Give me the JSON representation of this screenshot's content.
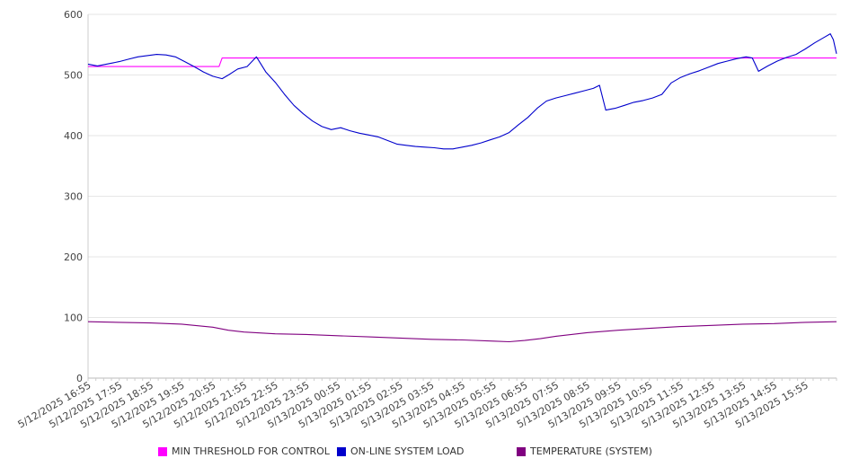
{
  "chart_data": {
    "type": "line",
    "ylim": [
      0,
      600
    ],
    "yticks": [
      0,
      100,
      200,
      300,
      400,
      500,
      600
    ],
    "grid": true,
    "legend_position": "bottom",
    "x_tick_labels": [
      "5/12/2025 16:55",
      "5/12/2025 17:55",
      "5/12/2025 18:55",
      "5/12/2025 19:55",
      "5/12/2025 20:55",
      "5/12/2025 21:55",
      "5/12/2025 22:55",
      "5/12/2025 23:55",
      "5/13/2025 00:55",
      "5/13/2025 01:55",
      "5/13/2025 02:55",
      "5/13/2025 03:55",
      "5/13/2025 04:55",
      "5/13/2025 05:55",
      "5/13/2025 06:55",
      "5/13/2025 07:55",
      "5/13/2025 08:55",
      "5/13/2025 09:55",
      "5/13/2025 10:55",
      "5/13/2025 11:55",
      "5/13/2025 12:55",
      "5/13/2025 13:55",
      "5/13/2025 14:55",
      "5/13/2025 15:55"
    ],
    "x_hours": [
      0,
      24
    ],
    "series": [
      {
        "name": "MIN THRESHOLD FOR CONTROL",
        "color": "#ff00ff",
        "points": [
          [
            0,
            514
          ],
          [
            4.2,
            514
          ],
          [
            4.3,
            528
          ],
          [
            24,
            528
          ]
        ]
      },
      {
        "name": "ON-LINE SYSTEM LOAD",
        "color": "#0000cc",
        "points": [
          [
            0,
            518
          ],
          [
            0.3,
            515
          ],
          [
            0.7,
            519
          ],
          [
            1.0,
            522
          ],
          [
            1.3,
            526
          ],
          [
            1.6,
            530
          ],
          [
            1.9,
            532
          ],
          [
            2.2,
            534
          ],
          [
            2.5,
            533
          ],
          [
            2.8,
            530
          ],
          [
            3.1,
            522
          ],
          [
            3.4,
            514
          ],
          [
            3.7,
            505
          ],
          [
            4.0,
            498
          ],
          [
            4.3,
            494
          ],
          [
            4.5,
            500
          ],
          [
            4.8,
            510
          ],
          [
            5.1,
            514
          ],
          [
            5.4,
            530
          ],
          [
            5.7,
            505
          ],
          [
            6.0,
            488
          ],
          [
            6.3,
            468
          ],
          [
            6.6,
            450
          ],
          [
            6.9,
            436
          ],
          [
            7.2,
            424
          ],
          [
            7.5,
            415
          ],
          [
            7.8,
            410
          ],
          [
            8.1,
            413
          ],
          [
            8.4,
            408
          ],
          [
            8.7,
            404
          ],
          [
            9.0,
            401
          ],
          [
            9.3,
            398
          ],
          [
            9.6,
            392
          ],
          [
            9.9,
            386
          ],
          [
            10.2,
            384
          ],
          [
            10.5,
            382
          ],
          [
            10.8,
            381
          ],
          [
            11.1,
            380
          ],
          [
            11.4,
            378
          ],
          [
            11.7,
            378
          ],
          [
            12.0,
            381
          ],
          [
            12.3,
            384
          ],
          [
            12.6,
            388
          ],
          [
            12.9,
            393
          ],
          [
            13.2,
            398
          ],
          [
            13.5,
            405
          ],
          [
            13.8,
            418
          ],
          [
            14.1,
            430
          ],
          [
            14.4,
            445
          ],
          [
            14.7,
            457
          ],
          [
            15.0,
            462
          ],
          [
            15.3,
            466
          ],
          [
            15.6,
            470
          ],
          [
            15.9,
            474
          ],
          [
            16.2,
            478
          ],
          [
            16.4,
            483
          ],
          [
            16.6,
            442
          ],
          [
            16.9,
            445
          ],
          [
            17.2,
            450
          ],
          [
            17.5,
            455
          ],
          [
            17.8,
            458
          ],
          [
            18.1,
            462
          ],
          [
            18.4,
            468
          ],
          [
            18.7,
            487
          ],
          [
            19.0,
            496
          ],
          [
            19.3,
            502
          ],
          [
            19.6,
            507
          ],
          [
            19.9,
            513
          ],
          [
            20.2,
            519
          ],
          [
            20.5,
            523
          ],
          [
            20.8,
            527
          ],
          [
            21.1,
            530
          ],
          [
            21.3,
            528
          ],
          [
            21.5,
            506
          ],
          [
            21.8,
            515
          ],
          [
            22.1,
            523
          ],
          [
            22.4,
            529
          ],
          [
            22.7,
            534
          ],
          [
            23.0,
            543
          ],
          [
            23.3,
            553
          ],
          [
            23.6,
            562
          ],
          [
            23.8,
            568
          ],
          [
            23.9,
            558
          ],
          [
            24.0,
            535
          ]
        ]
      },
      {
        "name": "TEMPERATURE (SYSTEM)",
        "color": "#800080",
        "points": [
          [
            0,
            93
          ],
          [
            1,
            92
          ],
          [
            2,
            91
          ],
          [
            3,
            89
          ],
          [
            4,
            84
          ],
          [
            4.5,
            79
          ],
          [
            5,
            76
          ],
          [
            6,
            73
          ],
          [
            7,
            72
          ],
          [
            8,
            70
          ],
          [
            9,
            68
          ],
          [
            10,
            66
          ],
          [
            11,
            64
          ],
          [
            12,
            63
          ],
          [
            13,
            61
          ],
          [
            13.5,
            60
          ],
          [
            14,
            62
          ],
          [
            14.5,
            65
          ],
          [
            15,
            69
          ],
          [
            16,
            75
          ],
          [
            17,
            79
          ],
          [
            18,
            82
          ],
          [
            19,
            85
          ],
          [
            20,
            87
          ],
          [
            21,
            89
          ],
          [
            22,
            90
          ],
          [
            23,
            92
          ],
          [
            24,
            93
          ]
        ]
      }
    ]
  }
}
